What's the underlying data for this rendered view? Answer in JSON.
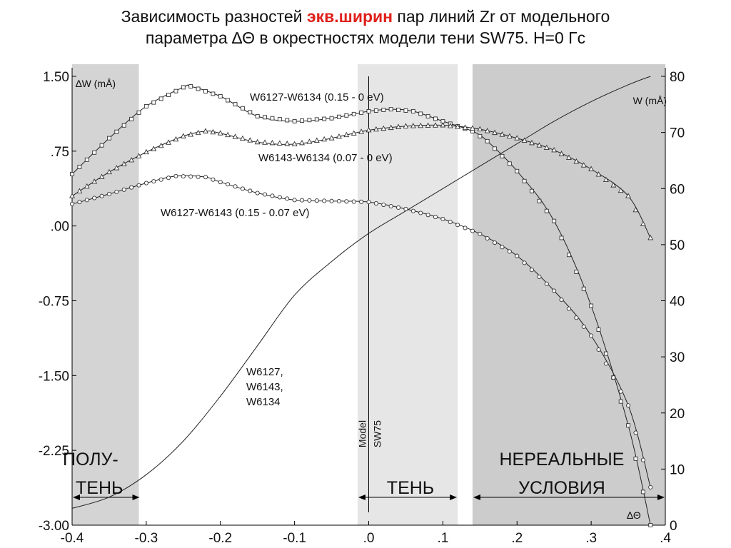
{
  "title": {
    "line1_pre": "Зависимость разностей ",
    "line1_highlight": "экв.ширин",
    "line1_post": " пар линий Zr от модельного",
    "line2": "параметра ∆Θ в окрестностях модели тени SW75. H=0 Гс",
    "highlight_color": "#e0201b"
  },
  "chart_data": {
    "type": "line",
    "x_axis": {
      "label": "∆Θ",
      "range": [
        -0.4,
        0.4
      ],
      "ticks": [
        -0.4,
        -0.3,
        -0.2,
        -0.1,
        0.0,
        0.1,
        0.2,
        0.3,
        0.4
      ],
      "tick_labels": [
        "-0.4",
        "-0.3",
        "-0.2",
        "-0.1",
        ".0",
        ".1",
        ".2",
        ".3",
        ".4"
      ]
    },
    "y_left_axis": {
      "label": "∆W (mÅ)",
      "range": [
        -3.0,
        1.5
      ],
      "ticks": [
        1.5,
        0.75,
        0.0,
        -0.75,
        -1.5,
        -2.25,
        -3.0
      ],
      "tick_labels": [
        "1.50",
        ".75",
        ".00",
        "-0.75",
        "-1.50",
        "-2.25",
        "-3.00"
      ]
    },
    "y_right_axis": {
      "label": "W (mÅ)",
      "range": [
        0,
        80
      ],
      "ticks": [
        0,
        10,
        20,
        30,
        40,
        50,
        60,
        70,
        80
      ],
      "tick_labels": [
        "0",
        "10",
        "20",
        "30",
        "40",
        "50",
        "60",
        "70",
        "80"
      ]
    },
    "regions": [
      {
        "name": "semi-shadow",
        "label_lines": [
          "ПОЛУ-",
          "ТЕНЬ"
        ],
        "x_range": [
          -0.4,
          -0.31
        ],
        "color": "#d4d4d4"
      },
      {
        "name": "shadow",
        "label_lines": [
          "ТЕНЬ"
        ],
        "x_range": [
          -0.015,
          0.12
        ],
        "color": "#e6e6e6"
      },
      {
        "name": "unreal",
        "label_lines": [
          "НЕРЕАЛЬНЫЕ",
          "УСЛОВИЯ"
        ],
        "x_range": [
          0.14,
          0.4
        ],
        "color": "#cccccc"
      }
    ],
    "model_line": {
      "x": 0.0,
      "label_lines": [
        "Model",
        "SW75"
      ]
    },
    "series": [
      {
        "name": "W6127-W6134 (0.15 - 0 eV)",
        "axis": "left",
        "marker": "square",
        "x": [
          -0.4,
          -0.35,
          -0.3,
          -0.25,
          -0.24,
          -0.2,
          -0.15,
          -0.1,
          -0.05,
          0.0,
          0.03,
          0.06,
          0.1,
          0.14,
          0.16,
          0.2,
          0.25,
          0.3,
          0.35,
          0.38
        ],
        "y": [
          0.52,
          0.88,
          1.2,
          1.39,
          1.4,
          1.3,
          1.1,
          1.05,
          1.08,
          1.15,
          1.17,
          1.15,
          1.05,
          0.95,
          0.85,
          0.55,
          0.05,
          -0.8,
          -2.0,
          -3.0
        ]
      },
      {
        "name": "W6143-W6134 (0.07 - 0 eV)",
        "axis": "left",
        "marker": "triangle",
        "x": [
          -0.4,
          -0.35,
          -0.3,
          -0.25,
          -0.22,
          -0.2,
          -0.15,
          -0.1,
          -0.05,
          0.0,
          0.05,
          0.1,
          0.15,
          0.2,
          0.25,
          0.3,
          0.35,
          0.38
        ],
        "y": [
          0.3,
          0.54,
          0.74,
          0.9,
          0.95,
          0.93,
          0.84,
          0.82,
          0.88,
          0.96,
          1.0,
          1.01,
          0.97,
          0.88,
          0.76,
          0.57,
          0.3,
          -0.12
        ]
      },
      {
        "name": "W6127-W6143 (0.15 - 0.07 eV)",
        "axis": "left",
        "marker": "circle",
        "x": [
          -0.4,
          -0.35,
          -0.3,
          -0.26,
          -0.22,
          -0.2,
          -0.15,
          -0.1,
          -0.05,
          0.0,
          0.05,
          0.1,
          0.15,
          0.2,
          0.25,
          0.3,
          0.35,
          0.38
        ],
        "y": [
          0.22,
          0.32,
          0.43,
          0.5,
          0.49,
          0.44,
          0.33,
          0.26,
          0.25,
          0.24,
          0.17,
          0.07,
          -0.08,
          -0.3,
          -0.65,
          -1.1,
          -1.8,
          -2.62
        ]
      },
      {
        "name": "W6127, W6143, W6134",
        "label_lines": [
          "W6127,",
          "W6143,",
          "W6134"
        ],
        "axis": "right",
        "marker": "none",
        "x": [
          -0.4,
          -0.35,
          -0.3,
          -0.25,
          -0.2,
          -0.15,
          -0.1,
          -0.05,
          0.0,
          0.05,
          0.1,
          0.15,
          0.2,
          0.25,
          0.3,
          0.35,
          0.38
        ],
        "y": [
          3,
          5,
          9,
          15,
          23,
          32,
          41,
          47,
          52,
          56,
          60,
          64,
          68,
          72,
          75.5,
          78.5,
          80
        ]
      }
    ]
  }
}
